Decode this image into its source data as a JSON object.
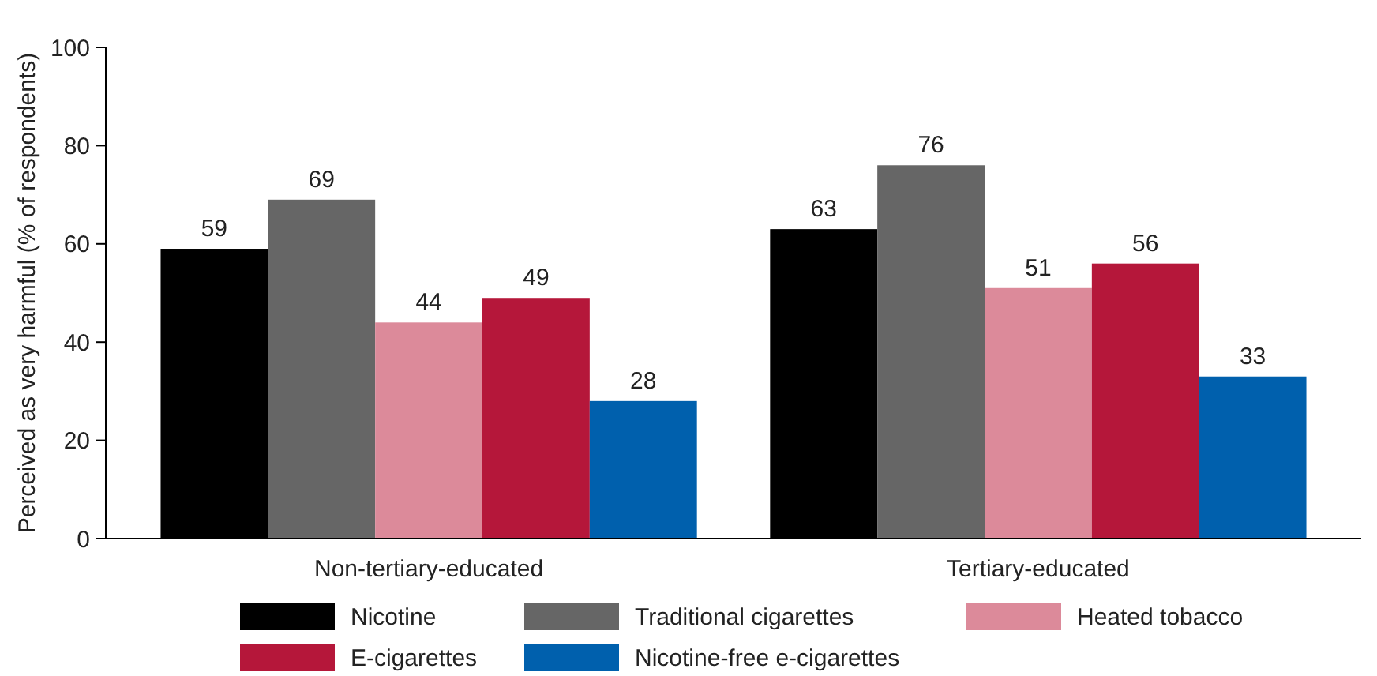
{
  "chart_data": {
    "type": "bar",
    "ylabel": "Perceived as very harmful (% of respondents)",
    "categories": [
      "Non-tertiary-educated",
      "Tertiary-educated"
    ],
    "series": [
      {
        "name": "Nicotine",
        "color": "#000000",
        "values": [
          59,
          63
        ]
      },
      {
        "name": "Traditional cigarettes",
        "color": "#666666",
        "values": [
          69,
          76
        ]
      },
      {
        "name": "Heated tobacco",
        "color": "#dc8a9a",
        "values": [
          44,
          51
        ]
      },
      {
        "name": "E-cigarettes",
        "color": "#b5173a",
        "values": [
          49,
          56
        ]
      },
      {
        "name": "Nicotine-free e-cigarettes",
        "color": "#0060ad",
        "values": [
          28,
          33
        ]
      }
    ],
    "ylim": [
      0,
      100
    ],
    "yticks": [
      0,
      20,
      40,
      60,
      80,
      100
    ],
    "data_labels": true,
    "legend": "bottom",
    "grid": false
  }
}
